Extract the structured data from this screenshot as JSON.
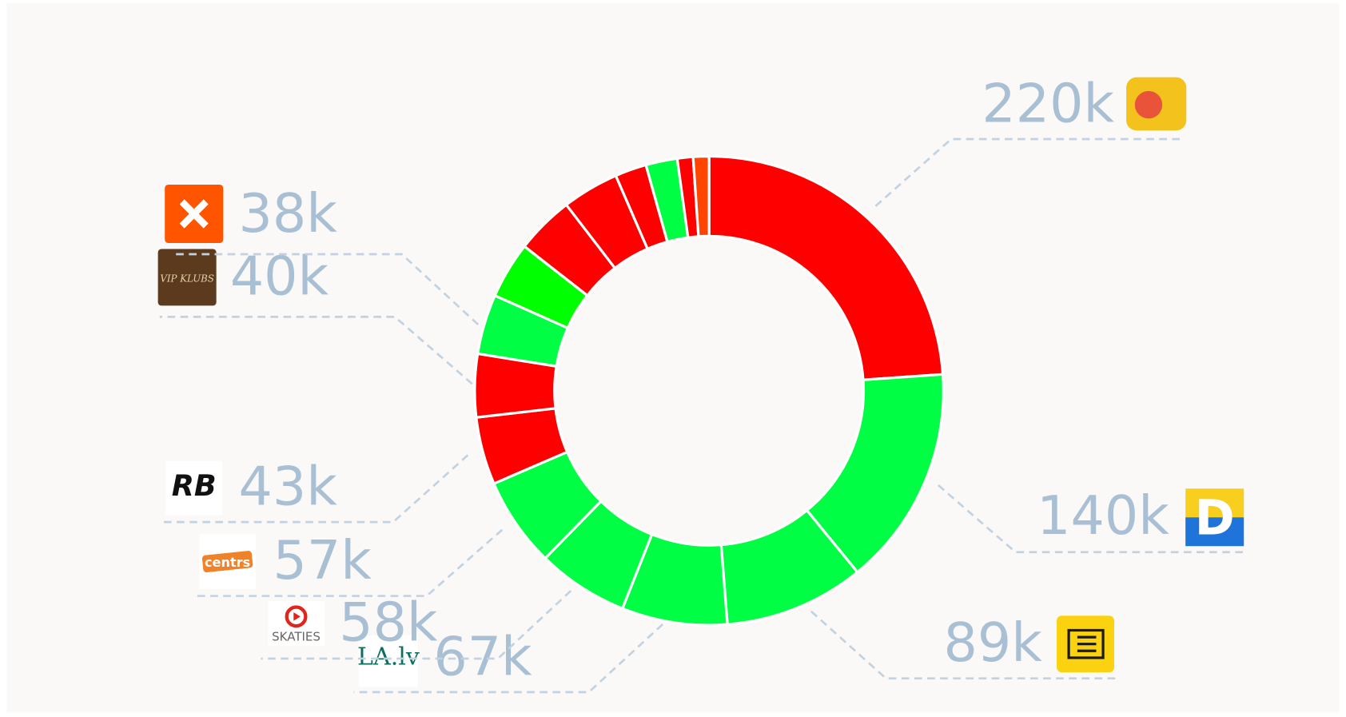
{
  "chart_data": {
    "type": "donut",
    "values": [
      220000,
      140000,
      89000,
      67000,
      58000,
      57000,
      43000,
      40000,
      38000,
      36000,
      37000,
      36000,
      20000,
      20000,
      10000,
      10000
    ],
    "value_labels": [
      "220k",
      "140k",
      "89k",
      "67k",
      "58k",
      "57k",
      "43k",
      "40k",
      "38k",
      null,
      null,
      null,
      null,
      null,
      null,
      null
    ],
    "colors": [
      "#ff0000",
      "#00ff44",
      "#00ff44",
      "#00ff44",
      "#00ff44",
      "#00ff44",
      "#ff0000",
      "#ff0000",
      "#00ff44",
      "#00ff00",
      "#ff0000",
      "#ff0000",
      "#ff0000",
      "#00ff44",
      "#ff0000",
      "#ff4500"
    ],
    "logo_texts": [
      null,
      "D",
      null,
      "LA.lv",
      "SKATIES",
      "centrs",
      "RB",
      "VIP KLUBS",
      null,
      null,
      null,
      null,
      null,
      null,
      null,
      null
    ]
  }
}
